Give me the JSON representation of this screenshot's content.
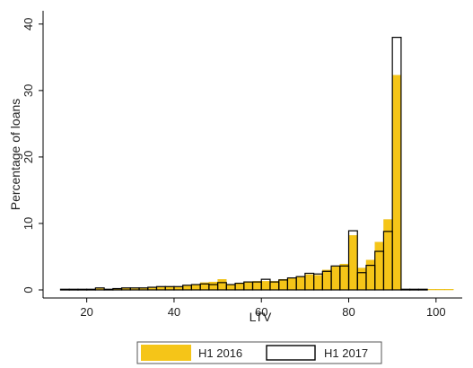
{
  "chart_data": {
    "type": "bar",
    "xlabel": "LTV",
    "ylabel": "Percentage of loans",
    "xlim": [
      10,
      106
    ],
    "ylim": [
      0,
      42
    ],
    "xticks": [
      20,
      40,
      60,
      80,
      100
    ],
    "yticks": [
      0,
      10,
      20,
      30,
      40
    ],
    "bin_width": 2,
    "grid": false,
    "legend_position": "bottom",
    "colors": {
      "h1_2016": "#F5C518",
      "h1_2017_outline": "#000000"
    },
    "series": [
      {
        "name": "H1 2016",
        "style": "filled",
        "x": [
          15,
          17,
          19,
          21,
          23,
          25,
          27,
          29,
          31,
          33,
          35,
          37,
          39,
          41,
          43,
          45,
          47,
          49,
          51,
          53,
          55,
          57,
          59,
          61,
          63,
          65,
          67,
          69,
          71,
          73,
          75,
          77,
          79,
          81,
          83,
          85,
          87,
          89,
          91,
          93,
          95,
          97,
          99,
          101,
          103
        ],
        "values": [
          0.1,
          0.1,
          0.1,
          0.1,
          0.2,
          0.1,
          0.2,
          0.3,
          0.2,
          0.3,
          0.3,
          0.4,
          0.5,
          0.4,
          0.6,
          0.8,
          1.1,
          1.2,
          1.6,
          0.8,
          1.0,
          1.2,
          1.3,
          1.3,
          1.3,
          1.6,
          1.8,
          2.0,
          2.3,
          2.2,
          3.0,
          3.5,
          3.9,
          8.2,
          3.3,
          4.5,
          7.2,
          10.6,
          32.3,
          0.1,
          0.1,
          0.1,
          0.1,
          0.1,
          0.1
        ]
      },
      {
        "name": "H1 2017",
        "style": "outline",
        "x": [
          15,
          17,
          19,
          21,
          23,
          25,
          27,
          29,
          31,
          33,
          35,
          37,
          39,
          41,
          43,
          45,
          47,
          49,
          51,
          53,
          55,
          57,
          59,
          61,
          63,
          65,
          67,
          69,
          71,
          73,
          75,
          77,
          79,
          81,
          83,
          85,
          87,
          89,
          91,
          93,
          95,
          97,
          99,
          101,
          103
        ],
        "values": [
          0.1,
          0.1,
          0.1,
          0.1,
          0.3,
          0.1,
          0.2,
          0.3,
          0.3,
          0.3,
          0.4,
          0.5,
          0.5,
          0.5,
          0.7,
          0.8,
          0.9,
          0.8,
          1.1,
          0.8,
          1.0,
          1.2,
          1.2,
          1.6,
          1.2,
          1.5,
          1.8,
          2.0,
          2.5,
          2.4,
          2.8,
          3.6,
          3.6,
          8.9,
          2.6,
          3.7,
          5.8,
          8.8,
          38.0,
          0.1,
          0.1,
          0.1,
          0,
          0,
          0
        ]
      }
    ]
  }
}
